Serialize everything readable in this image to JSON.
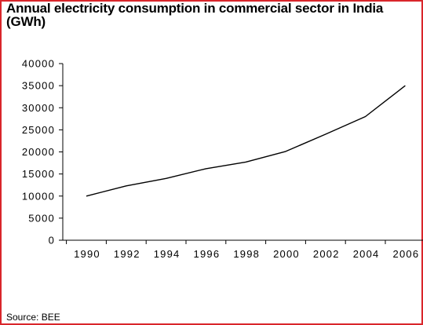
{
  "chart_data": {
    "type": "line",
    "title": "Annual electricity consumption in commercial sector in India (GWh)",
    "xlabel": "",
    "ylabel": "",
    "x": [
      1990,
      1992,
      1994,
      1996,
      1998,
      2000,
      2002,
      2004,
      2006
    ],
    "x_tick_labels": [
      "1990",
      "1992",
      "1994",
      "1996",
      "1998",
      "2000",
      "2002",
      "2004",
      "2006"
    ],
    "ylim": [
      0,
      40000
    ],
    "y_ticks": [
      0,
      5000,
      10000,
      15000,
      20000,
      25000,
      30000,
      35000,
      40000
    ],
    "y_tick_labels": [
      "0",
      "5000",
      "10000",
      "15000",
      "20000",
      "25000",
      "30000",
      "35000",
      "40000"
    ],
    "series": [
      {
        "values": [
          10000,
          12300,
          14000,
          16200,
          17700,
          20100,
          24000,
          28000,
          35000
        ],
        "color": "#000000"
      }
    ],
    "grid": false,
    "legend": "none"
  },
  "source": "Source: BEE",
  "colors": {
    "frame_border": "#d9262b",
    "line": "#000000",
    "axis": "#000000"
  }
}
